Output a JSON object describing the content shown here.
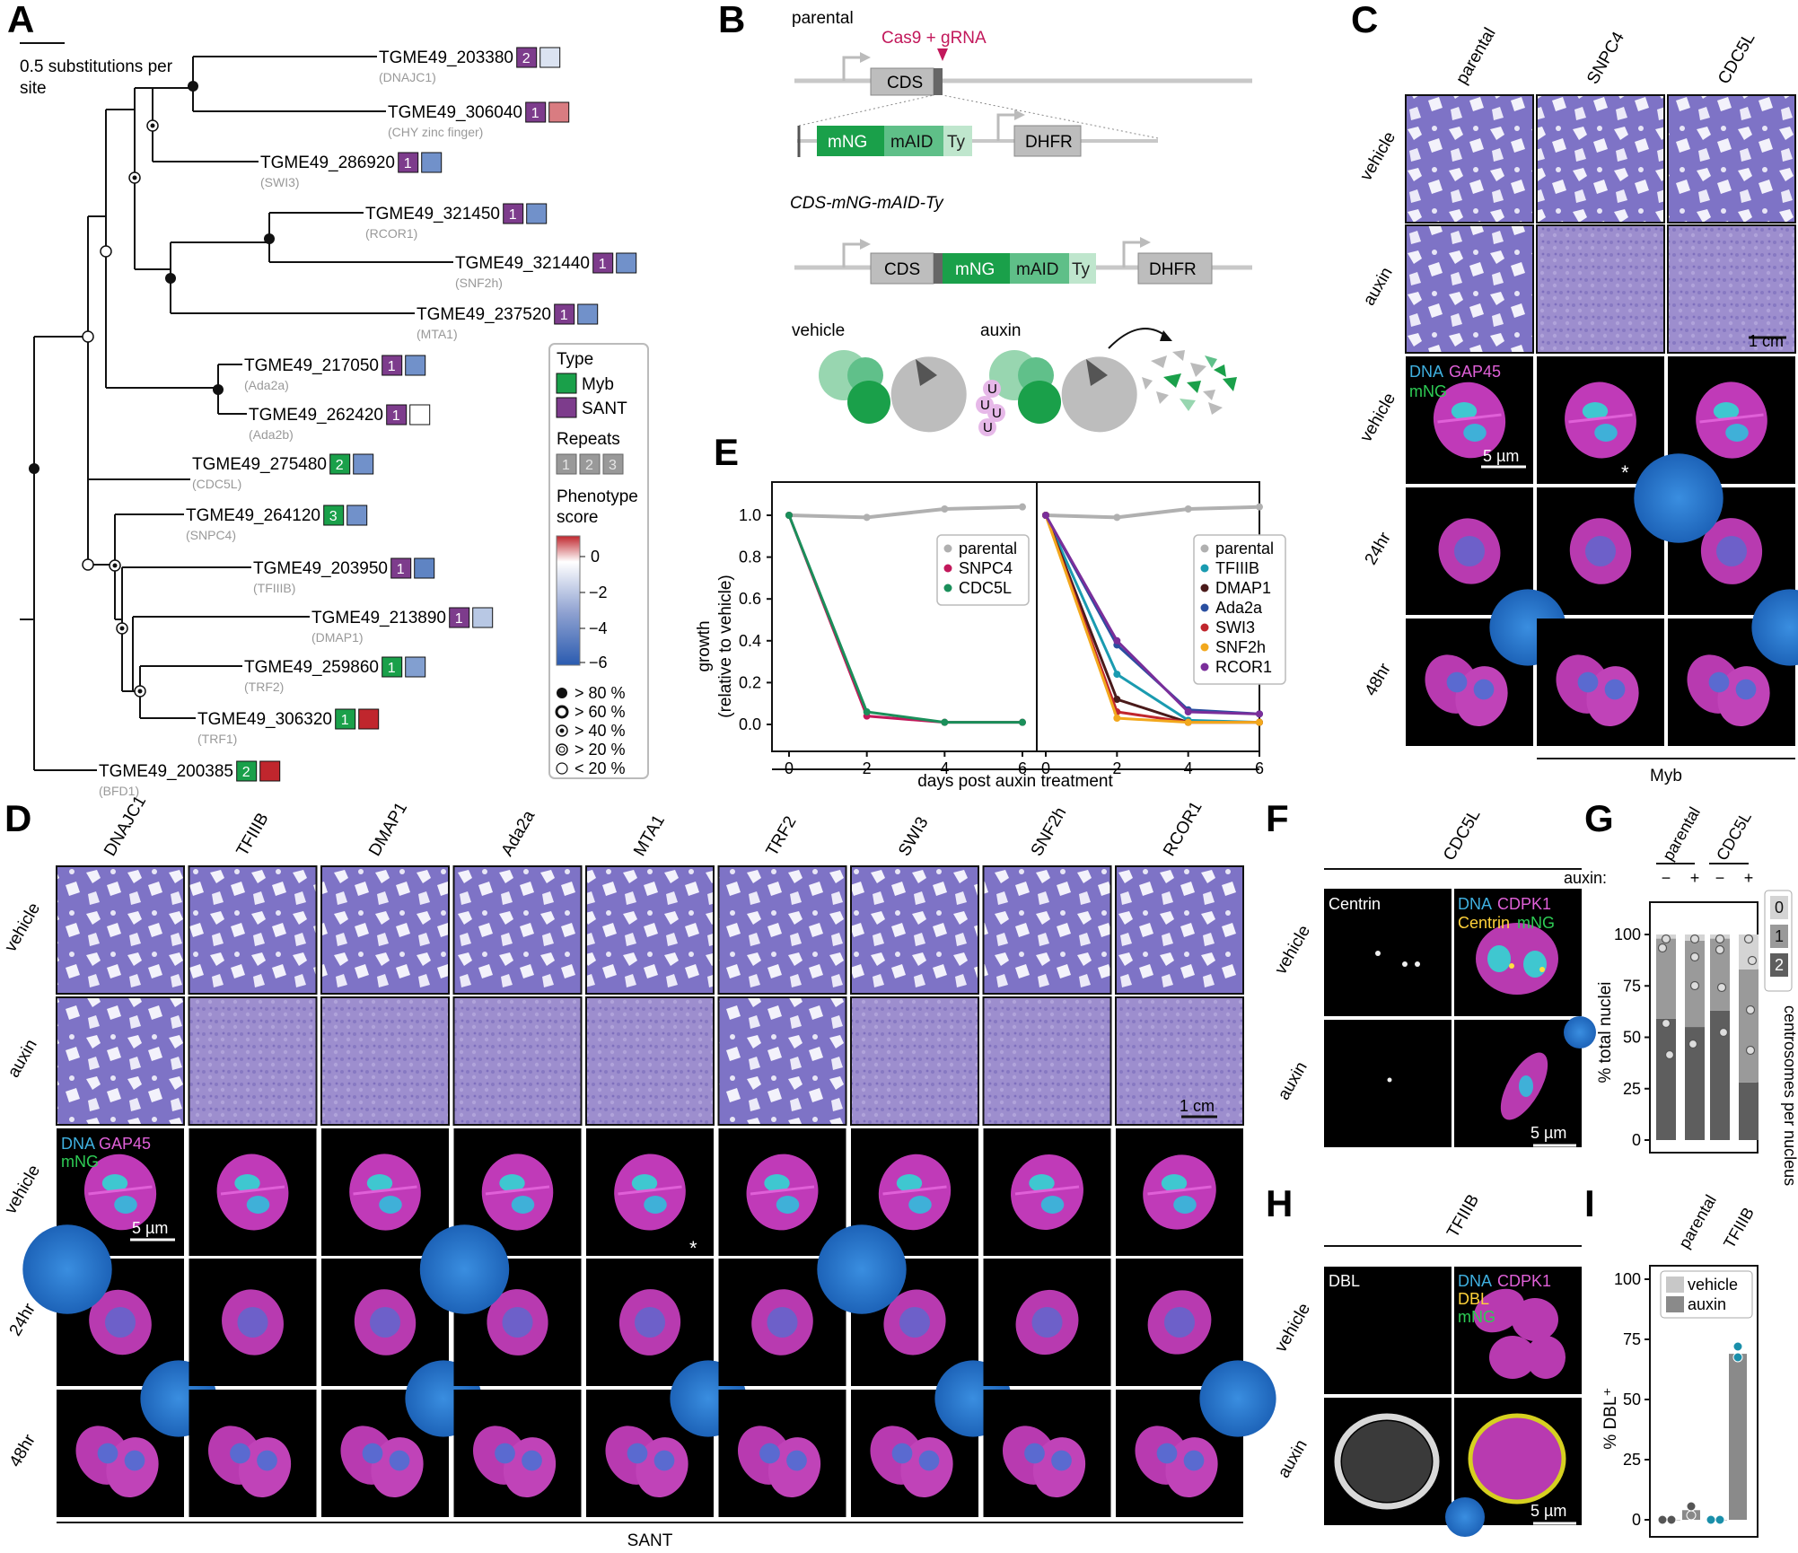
{
  "panels": {
    "A": "A",
    "B": "B",
    "C": "C",
    "D": "D",
    "E": "E",
    "F": "F",
    "G": "G",
    "H": "H",
    "I": "I"
  },
  "colors": {
    "myb": "#1aa04a",
    "sant": "#7d3c8c",
    "gray": "#999999",
    "bg_stain": "#9a8ad0"
  },
  "tree": {
    "scale_label": [
      "0.5 substitutions per",
      "site"
    ],
    "leaves": [
      {
        "id": "TGME49_203380",
        "sub": "(DNAJC1)",
        "repeat": "2",
        "type": "sant",
        "score": -1.0
      },
      {
        "id": "TGME49_306040",
        "sub": "(CHY zinc finger)",
        "repeat": "1",
        "type": "sant",
        "score": 0.6
      },
      {
        "id": "TGME49_286920",
        "sub": "(SWI3)",
        "repeat": "1",
        "type": "sant",
        "score": -4
      },
      {
        "id": "TGME49_321450",
        "sub": "(RCOR1)",
        "repeat": "1",
        "type": "sant",
        "score": -4
      },
      {
        "id": "TGME49_321440",
        "sub": "(SNF2h)",
        "repeat": "1",
        "type": "sant",
        "score": -4
      },
      {
        "id": "TGME49_237520",
        "sub": "(MTA1)",
        "repeat": "1",
        "type": "sant",
        "score": -4
      },
      {
        "id": "TGME49_217050",
        "sub": "(Ada2a)",
        "repeat": "1",
        "type": "sant",
        "score": -4
      },
      {
        "id": "TGME49_262420",
        "sub": "(Ada2b)",
        "repeat": "1",
        "type": "sant",
        "score": 0
      },
      {
        "id": "TGME49_275480",
        "sub": "(CDC5L)",
        "repeat": "2",
        "type": "myb",
        "score": -4
      },
      {
        "id": "TGME49_264120",
        "sub": "(SNPC4)",
        "repeat": "3",
        "type": "myb",
        "score": -4
      },
      {
        "id": "TGME49_203950",
        "sub": "(TFIIIB)",
        "repeat": "1",
        "type": "sant",
        "score": -4.5
      },
      {
        "id": "TGME49_213890",
        "sub": "(DMAP1)",
        "repeat": "1",
        "type": "sant",
        "score": -2
      },
      {
        "id": "TGME49_259860",
        "sub": "(TRF2)",
        "repeat": "1",
        "type": "myb",
        "score": -3.5
      },
      {
        "id": "TGME49_306320",
        "sub": "(TRF1)",
        "repeat": "1",
        "type": "myb",
        "score": 1
      },
      {
        "id": "TGME49_200385",
        "sub": "(BFD1)",
        "repeat": "2",
        "type": "myb",
        "score": 1
      }
    ],
    "legend": {
      "type_title": "Type",
      "myb": "Myb",
      "sant": "SANT",
      "repeats_title": "Repeats",
      "repeats": [
        "1",
        "2",
        "3"
      ],
      "phenotype_title": [
        "Phenotype",
        "score"
      ],
      "ticks": [
        "0",
        "−2",
        "−4",
        "−6"
      ],
      "support": [
        "> 80 %",
        "> 60 %",
        "> 40 %",
        "> 20 %",
        "< 20 %"
      ]
    }
  },
  "panelB": {
    "parental": "parental",
    "cas9": "Cas9 + gRNA",
    "cds": "CDS",
    "mng": "mNG",
    "maid": "mAID",
    "ty": "Ty",
    "dhfr": "DHFR",
    "construct": "CDS-mNG-mAID-Ty",
    "vehicle": "vehicle",
    "auxin": "auxin",
    "ub": "U"
  },
  "panelC": {
    "cols": [
      "parental",
      "SNPC4",
      "CDC5L"
    ],
    "rows": [
      "vehicle",
      "auxin",
      "vehicle",
      "24hr",
      "48hr"
    ],
    "scale_plaque": "1 cm",
    "scale_cell": "5 µm",
    "legend_dna": "DNA",
    "legend_gap": "GAP45",
    "legend_mng": "mNG",
    "asterisk": "*",
    "group": "Myb"
  },
  "panelD": {
    "cols": [
      "DNAJC1",
      "TFIIIB",
      "DMAP1",
      "Ada2a",
      "MTA1",
      "TRF2",
      "SWI3",
      "SNF2h",
      "RCOR1"
    ],
    "rows": [
      "vehicle",
      "auxin",
      "vehicle",
      "24hr",
      "48hr"
    ],
    "auxin_plaques": [
      1,
      0,
      0,
      0,
      0,
      1,
      0,
      0,
      0
    ],
    "scale_plaque": "1 cm",
    "scale_cell": "5 µm",
    "asterisk": "*",
    "group": "SANT"
  },
  "chart_data": [
    {
      "type": "line",
      "ylabel": "growth",
      "ylabel2": "(relative to vehicle)",
      "xlabel": "days post auxin treatment",
      "x": [
        0,
        2,
        4,
        6
      ],
      "ylim": [
        0,
        1.1
      ],
      "yticks": [
        "0.0",
        "0.2",
        "0.4",
        "0.6",
        "0.8",
        "1.0"
      ],
      "xticks": [
        "0",
        "2",
        "4",
        "6"
      ],
      "series": [
        {
          "name": "parental",
          "color": "#b0b0b0",
          "values": [
            1.0,
            0.99,
            1.03,
            1.04
          ]
        },
        {
          "name": "SNPC4",
          "color": "#c2185b",
          "values": [
            1.0,
            0.04,
            0.01,
            0.01
          ]
        },
        {
          "name": "CDC5L",
          "color": "#1a8f5a",
          "values": [
            1.0,
            0.06,
            0.01,
            0.01
          ]
        }
      ]
    },
    {
      "type": "line",
      "x": [
        0,
        2,
        4,
        6
      ],
      "ylim": [
        0,
        1.1
      ],
      "xticks": [
        "0",
        "2",
        "4",
        "6"
      ],
      "series": [
        {
          "name": "parental",
          "color": "#b0b0b0",
          "values": [
            1.0,
            0.99,
            1.03,
            1.04
          ]
        },
        {
          "name": "TFIIIB",
          "color": "#1a9bb0",
          "values": [
            1.0,
            0.24,
            0.02,
            0.01
          ]
        },
        {
          "name": "DMAP1",
          "color": "#4a1a1a",
          "values": [
            1.0,
            0.12,
            0.01,
            0.01
          ]
        },
        {
          "name": "Ada2a",
          "color": "#2a4fa0",
          "values": [
            1.0,
            0.38,
            0.07,
            0.05
          ]
        },
        {
          "name": "SWI3",
          "color": "#c0262d",
          "values": [
            1.0,
            0.06,
            0.01,
            0.01
          ]
        },
        {
          "name": "SNF2h",
          "color": "#f2a81d",
          "values": [
            1.0,
            0.03,
            0.01,
            0.01
          ]
        },
        {
          "name": "RCOR1",
          "color": "#7a2e9a",
          "values": [
            1.0,
            0.4,
            0.06,
            0.05
          ]
        }
      ]
    },
    {
      "type": "bar",
      "ylabel": "% total nuclei",
      "ylabel2": "centrosomes per nucleus",
      "title": "auxin:",
      "groups": [
        "parental",
        "CDC5L"
      ],
      "categories": [
        "−",
        "+",
        "−",
        "+"
      ],
      "yticks": [
        "0",
        "25",
        "50",
        "75",
        "100"
      ],
      "stack_labels": [
        "0",
        "1",
        "2"
      ],
      "stacks": [
        [
          2,
          39,
          59
        ],
        [
          3,
          42,
          55
        ],
        [
          2,
          35,
          63
        ],
        [
          17,
          55,
          28
        ]
      ]
    },
    {
      "type": "bar",
      "ylabel": "% DBL⁺",
      "groups": [
        "parental",
        "TFIIIB"
      ],
      "yticks": [
        "0",
        "25",
        "50",
        "75",
        "100"
      ],
      "legend": [
        "vehicle",
        "auxin"
      ],
      "values": [
        0,
        4,
        0,
        69
      ]
    }
  ],
  "panelF": {
    "col": "CDC5L",
    "rows": [
      "vehicle",
      "auxin"
    ],
    "centrin": "Centrin",
    "dna": "DNA",
    "cdpk": "CDPK1",
    "centrin2": "Centrin",
    "mng": "mNG",
    "scale": "5 µm"
  },
  "panelH": {
    "col": "TFIIIB",
    "rows": [
      "vehicle",
      "auxin"
    ],
    "dbl": "DBL",
    "dna": "DNA",
    "cdpk": "CDPK1",
    "dbl2": "DBL",
    "mng": "mNG",
    "scale": "5 µm"
  }
}
